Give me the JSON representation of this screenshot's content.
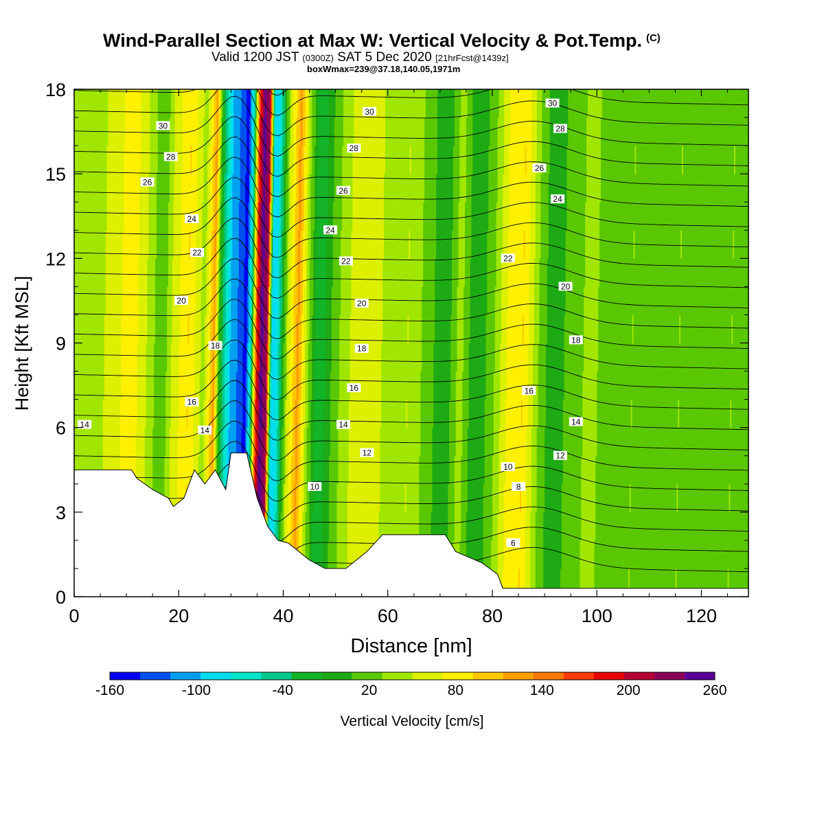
{
  "title": {
    "main": "Wind-Parallel Section at Max W: Vertical Velocity & Pot.Temp.",
    "copyright": "(C)",
    "valid_prefix": "Valid 1200 JST",
    "valid_utc": "(0300Z)",
    "valid_date": "SAT 5 Dec 2020",
    "forecast": "[21hrFcst@1439z]",
    "subtitle": "boxWmax=239@37.18,140.05,1971m"
  },
  "chart_data": {
    "type": "heatmap",
    "xlabel": "Distance [nm]",
    "ylabel": "Height [Kft MSL]",
    "xlim": [
      0,
      129
    ],
    "ylim": [
      0,
      18
    ],
    "x_ticks": [
      "0",
      "20",
      "40",
      "60",
      "80",
      "100",
      "120"
    ],
    "y_ticks": [
      "0",
      "3",
      "6",
      "9",
      "12",
      "15",
      "18"
    ],
    "colorbar": {
      "label": "Vertical Velocity [cm/s]",
      "tick_labels": [
        "-160",
        "-100",
        "-40",
        "20",
        "80",
        "140",
        "200",
        "260"
      ],
      "colors": [
        "#0000f0",
        "#0050f0",
        "#00a0f0",
        "#00dcf0",
        "#00e6c8",
        "#00c88c",
        "#14b428",
        "#1eaa14",
        "#5ac800",
        "#a0e600",
        "#dcf000",
        "#fff000",
        "#ffc800",
        "#ffa000",
        "#ff7800",
        "#ff3c00",
        "#e60000",
        "#b40032",
        "#8c005a",
        "#5a0096"
      ],
      "range": [
        -160,
        260
      ],
      "step": 20
    },
    "w_columns": [
      {
        "x": 0,
        "w": 20
      },
      {
        "x": 3,
        "w": 30
      },
      {
        "x": 7,
        "w": 50
      },
      {
        "x": 10,
        "w": 75
      },
      {
        "x": 13,
        "w": 40
      },
      {
        "x": 16,
        "w": 0
      },
      {
        "x": 18,
        "w": 45
      },
      {
        "x": 21,
        "w": 80
      },
      {
        "x": 24,
        "w": 30
      },
      {
        "x": 26,
        "w": 110
      },
      {
        "x": 27,
        "w": -20
      },
      {
        "x": 29,
        "w": -100
      },
      {
        "x": 31,
        "w": -130
      },
      {
        "x": 32,
        "w": -150
      },
      {
        "x": 33,
        "w": -60
      },
      {
        "x": 34,
        "w": 150
      },
      {
        "x": 35,
        "w": 230
      },
      {
        "x": 36,
        "w": 200
      },
      {
        "x": 37,
        "w": -90
      },
      {
        "x": 38,
        "w": -80
      },
      {
        "x": 40,
        "w": 40
      },
      {
        "x": 42,
        "w": 110
      },
      {
        "x": 44,
        "w": 20
      },
      {
        "x": 46,
        "w": -40
      },
      {
        "x": 49,
        "w": 10
      },
      {
        "x": 52,
        "w": 40
      },
      {
        "x": 56,
        "w": 50
      },
      {
        "x": 60,
        "w": 30
      },
      {
        "x": 63,
        "w": 40
      },
      {
        "x": 67,
        "w": 10
      },
      {
        "x": 70,
        "w": -20
      },
      {
        "x": 73,
        "w": 30
      },
      {
        "x": 76,
        "w": -20
      },
      {
        "x": 79,
        "w": 10
      },
      {
        "x": 82,
        "w": 60
      },
      {
        "x": 85,
        "w": 80
      },
      {
        "x": 88,
        "w": 20
      },
      {
        "x": 91,
        "w": -20
      },
      {
        "x": 94,
        "w": 10
      },
      {
        "x": 98,
        "w": 25
      },
      {
        "x": 102,
        "w": 10
      },
      {
        "x": 106,
        "w": 20
      },
      {
        "x": 110,
        "w": 0
      },
      {
        "x": 115,
        "w": 20
      },
      {
        "x": 120,
        "w": 10
      },
      {
        "x": 125,
        "w": 20
      },
      {
        "x": 129,
        "w": 10
      }
    ],
    "terrain": [
      {
        "x": 0,
        "h": 4.5
      },
      {
        "x": 11,
        "h": 4.5
      },
      {
        "x": 12,
        "h": 4.2
      },
      {
        "x": 15,
        "h": 3.8
      },
      {
        "x": 18,
        "h": 3.5
      },
      {
        "x": 19,
        "h": 3.2
      },
      {
        "x": 21,
        "h": 3.5
      },
      {
        "x": 23,
        "h": 4.5
      },
      {
        "x": 25,
        "h": 4.0
      },
      {
        "x": 27,
        "h": 4.5
      },
      {
        "x": 29,
        "h": 3.8
      },
      {
        "x": 30,
        "h": 5.1
      },
      {
        "x": 33,
        "h": 5.1
      },
      {
        "x": 35,
        "h": 3.5
      },
      {
        "x": 37,
        "h": 2.5
      },
      {
        "x": 39,
        "h": 2.0
      },
      {
        "x": 41,
        "h": 1.9
      },
      {
        "x": 43,
        "h": 1.6
      },
      {
        "x": 45,
        "h": 1.3
      },
      {
        "x": 48,
        "h": 1.0
      },
      {
        "x": 52,
        "h": 1.0
      },
      {
        "x": 56,
        "h": 1.6
      },
      {
        "x": 59,
        "h": 2.2
      },
      {
        "x": 64,
        "h": 2.2
      },
      {
        "x": 67,
        "h": 2.2
      },
      {
        "x": 71,
        "h": 2.2
      },
      {
        "x": 73,
        "h": 1.6
      },
      {
        "x": 78,
        "h": 1.2
      },
      {
        "x": 81,
        "h": 0.8
      },
      {
        "x": 82,
        "h": 0.3
      },
      {
        "x": 129,
        "h": 0.3
      }
    ],
    "theta_levels": [
      6,
      7,
      8,
      9,
      10,
      11,
      12,
      13,
      14,
      15,
      16,
      17,
      18,
      19,
      20,
      21,
      22,
      23,
      24,
      25,
      26,
      27,
      28,
      29,
      30,
      31,
      32
    ],
    "theta_labels": [
      {
        "text": "30",
        "x": 17,
        "y": 16.7
      },
      {
        "text": "28",
        "x": 18.5,
        "y": 15.6
      },
      {
        "text": "26",
        "x": 14,
        "y": 14.7
      },
      {
        "text": "24",
        "x": 22.5,
        "y": 13.4
      },
      {
        "text": "22",
        "x": 23.5,
        "y": 12.2
      },
      {
        "text": "20",
        "x": 20.5,
        "y": 10.5
      },
      {
        "text": "18",
        "x": 27,
        "y": 8.9
      },
      {
        "text": "16",
        "x": 22.5,
        "y": 6.9
      },
      {
        "text": "14",
        "x": 25,
        "y": 5.9
      },
      {
        "text": "14",
        "x": 2,
        "y": 6.1
      },
      {
        "text": "30",
        "x": 56.5,
        "y": 17.2
      },
      {
        "text": "28",
        "x": 53.5,
        "y": 15.9
      },
      {
        "text": "26",
        "x": 51.5,
        "y": 14.4
      },
      {
        "text": "24",
        "x": 49,
        "y": 13.0
      },
      {
        "text": "22",
        "x": 52,
        "y": 11.9
      },
      {
        "text": "20",
        "x": 55,
        "y": 10.4
      },
      {
        "text": "18",
        "x": 55,
        "y": 8.8
      },
      {
        "text": "16",
        "x": 53.5,
        "y": 7.4
      },
      {
        "text": "14",
        "x": 51.5,
        "y": 6.1
      },
      {
        "text": "12",
        "x": 56,
        "y": 5.1
      },
      {
        "text": "10",
        "x": 46,
        "y": 3.9
      },
      {
        "text": "30",
        "x": 91.5,
        "y": 17.5
      },
      {
        "text": "28",
        "x": 93,
        "y": 16.6
      },
      {
        "text": "26",
        "x": 89,
        "y": 15.2
      },
      {
        "text": "24",
        "x": 92.5,
        "y": 14.1
      },
      {
        "text": "22",
        "x": 83,
        "y": 12.0
      },
      {
        "text": "20",
        "x": 94,
        "y": 11.0
      },
      {
        "text": "18",
        "x": 96,
        "y": 9.1
      },
      {
        "text": "16",
        "x": 87,
        "y": 7.3
      },
      {
        "text": "14",
        "x": 96,
        "y": 6.2
      },
      {
        "text": "12",
        "x": 93,
        "y": 5.0
      },
      {
        "text": "10",
        "x": 83,
        "y": 4.6
      },
      {
        "text": "8",
        "x": 85,
        "y": 3.9
      },
      {
        "text": "6",
        "x": 84,
        "y": 1.9
      }
    ]
  }
}
